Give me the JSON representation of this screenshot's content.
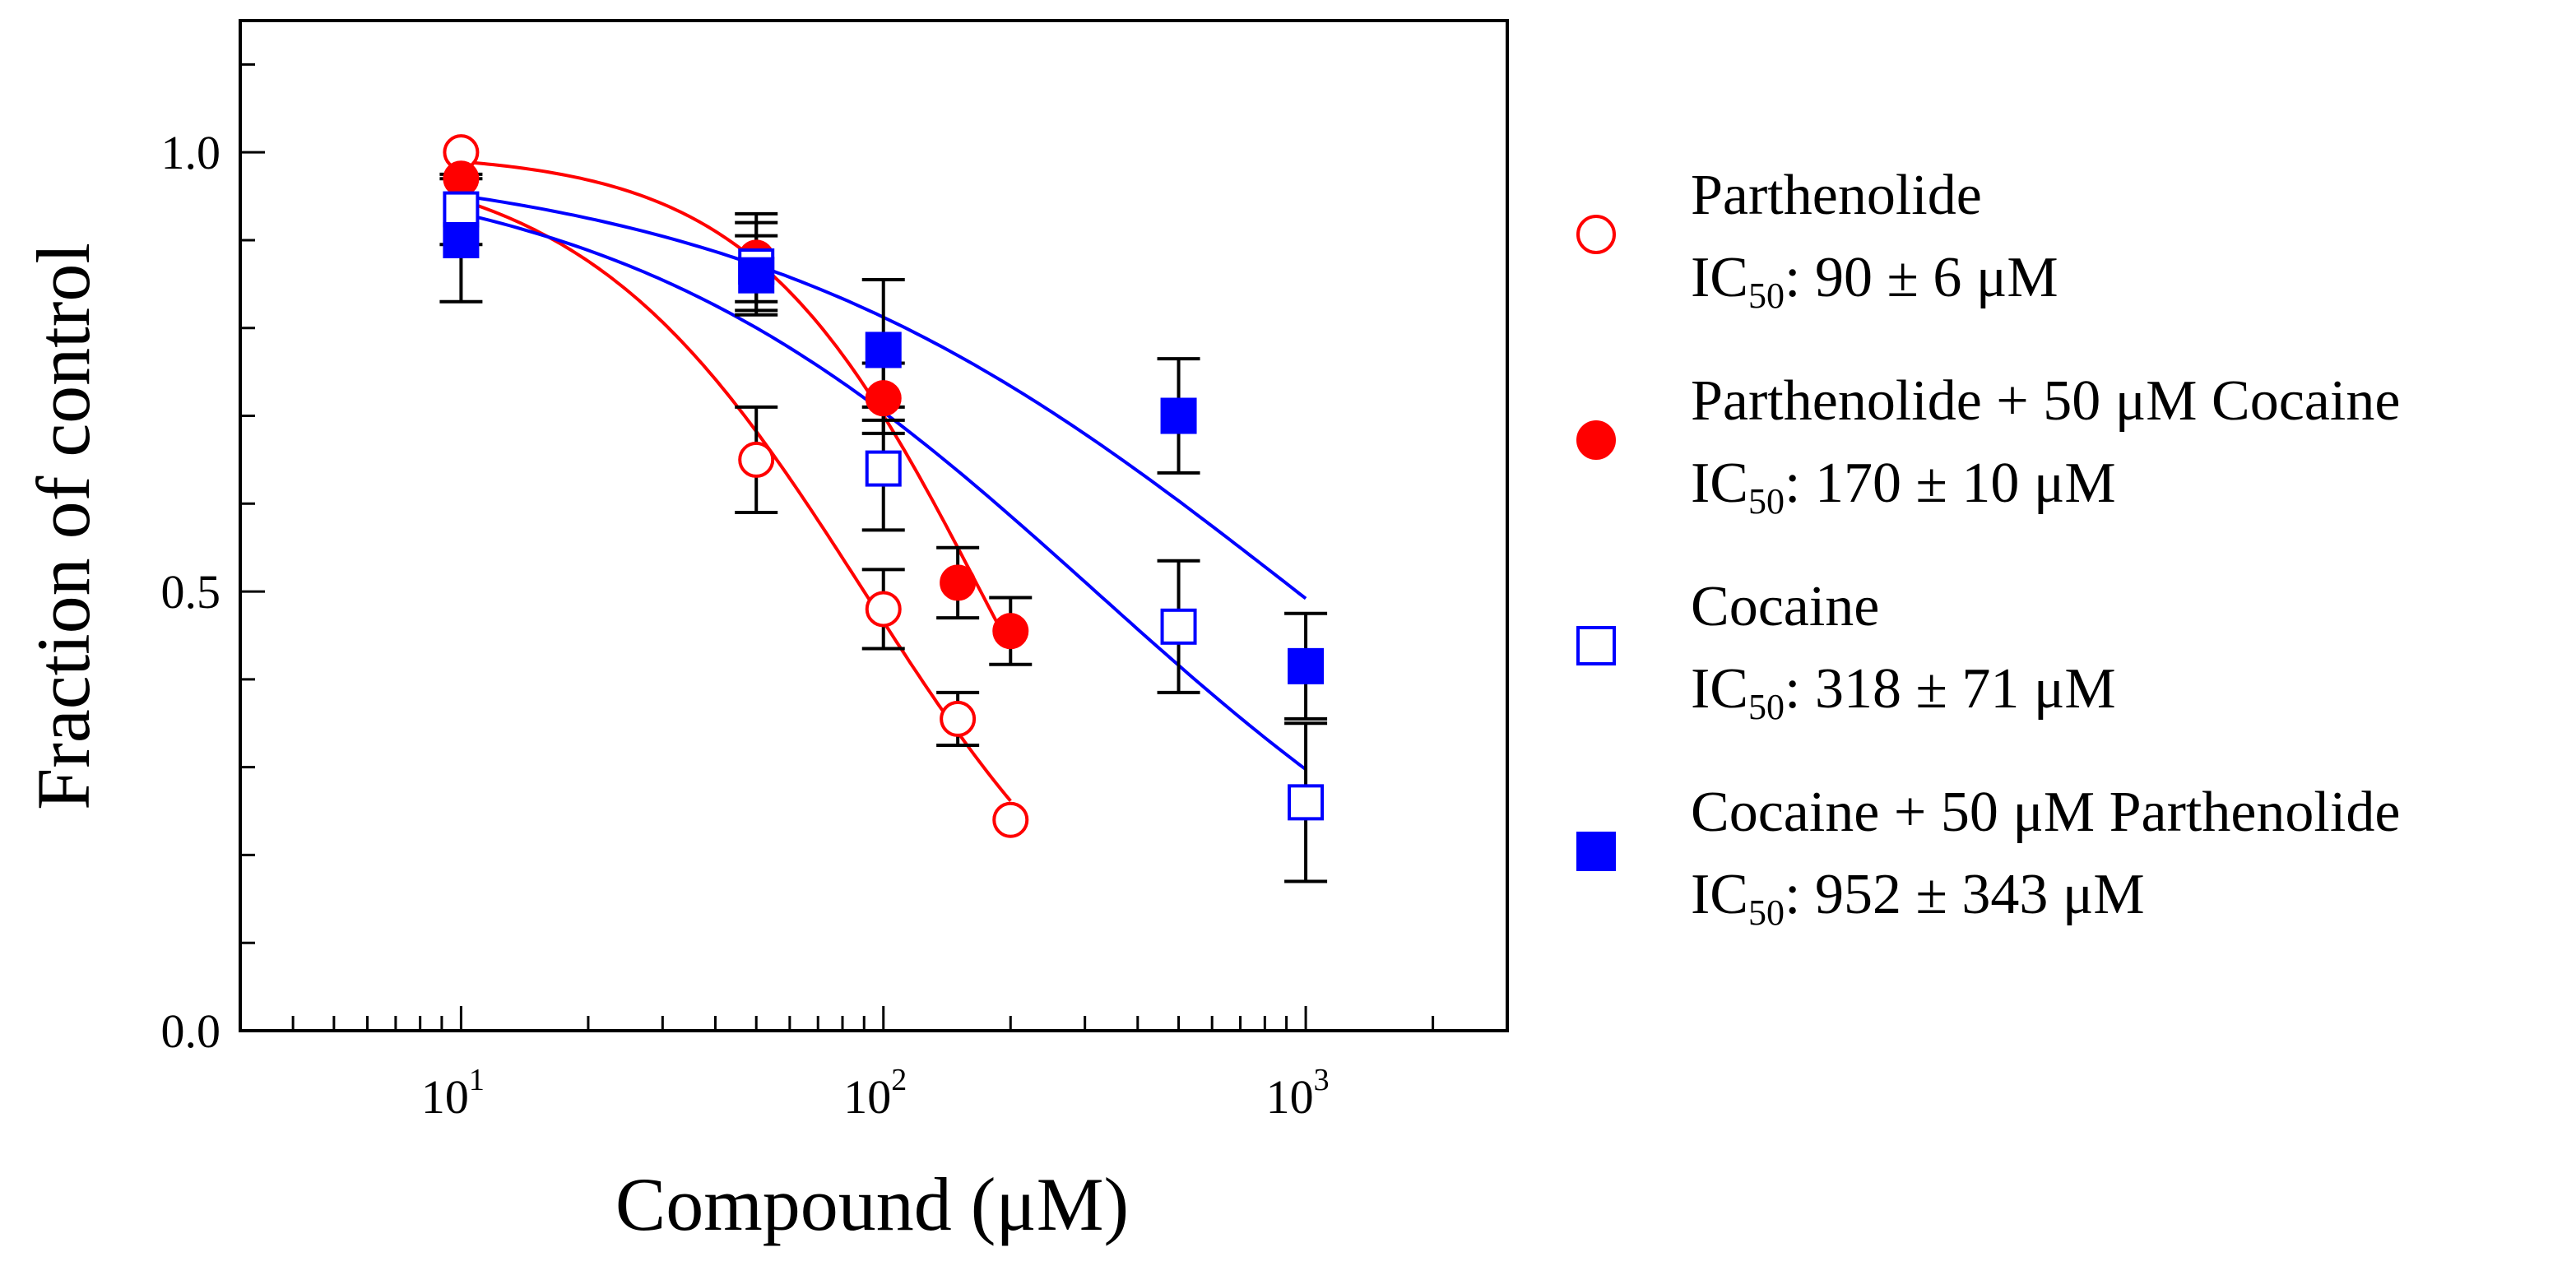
{
  "chart_data": {
    "type": "scatter",
    "title": "",
    "xlabel": "Compound (μM)",
    "ylabel": "Fraction of control",
    "x_scale": "log",
    "xlim": [
      3,
      3000
    ],
    "ylim": [
      0,
      1.15
    ],
    "x_ticks": [
      {
        "value": 10,
        "base": "10",
        "exp": "1"
      },
      {
        "value": 100,
        "base": "10",
        "exp": "2"
      },
      {
        "value": 1000,
        "base": "10",
        "exp": "3"
      }
    ],
    "y_ticks": [
      {
        "value": 0.0,
        "label": "0.0"
      },
      {
        "value": 0.5,
        "label": "0.5"
      },
      {
        "value": 1.0,
        "label": "1.0"
      }
    ],
    "legend_position": "right",
    "series": [
      {
        "name": "Parthenolide",
        "ic50_prefix": "IC",
        "ic50_sub": "50",
        "ic50_value": ": 90 ± 6 μM",
        "marker": "circle",
        "filled": false,
        "color": "#ff0000",
        "points": [
          {
            "x": 10,
            "y": 1.0,
            "err": 0.0
          },
          {
            "x": 50,
            "y": 0.65,
            "err": 0.06
          },
          {
            "x": 100,
            "y": 0.48,
            "err": 0.045
          },
          {
            "x": 150,
            "y": 0.355,
            "err": 0.03
          },
          {
            "x": 200,
            "y": 0.24,
            "err": 0.0
          }
        ],
        "fit": {
          "top": 1.0,
          "ic50": 90,
          "hill": 1.3,
          "xmin": 10,
          "xmax": 200
        }
      },
      {
        "name": "Parthenolide + 50 μM Cocaine",
        "ic50_prefix": "IC",
        "ic50_sub": "50",
        "ic50_value": ": 170 ± 10 μM",
        "marker": "circle",
        "filled": true,
        "color": "#ff0000",
        "points": [
          {
            "x": 10,
            "y": 0.97,
            "err": 0.0
          },
          {
            "x": 50,
            "y": 0.88,
            "err": 0.05
          },
          {
            "x": 100,
            "y": 0.72,
            "err": 0.04
          },
          {
            "x": 150,
            "y": 0.51,
            "err": 0.04
          },
          {
            "x": 200,
            "y": 0.455,
            "err": 0.038
          }
        ],
        "fit": {
          "top": 1.0,
          "ic50": 170,
          "hill": 1.6,
          "xmin": 10,
          "xmax": 200
        }
      },
      {
        "name": "Cocaine",
        "ic50_prefix": "IC",
        "ic50_sub": "50",
        "ic50_value": ": 318 ± 71 μM",
        "marker": "square",
        "filled": false,
        "color": "#0000ff",
        "points": [
          {
            "x": 10,
            "y": 0.935,
            "err": 0.04
          },
          {
            "x": 50,
            "y": 0.87,
            "err": 0.05
          },
          {
            "x": 100,
            "y": 0.64,
            "err": 0.07
          },
          {
            "x": 500,
            "y": 0.46,
            "err": 0.075
          },
          {
            "x": 1000,
            "y": 0.26,
            "err": 0.09
          }
        ],
        "fit": {
          "top": 1.0,
          "ic50": 318,
          "hill": 0.75,
          "xmin": 10,
          "xmax": 1000
        }
      },
      {
        "name": "Cocaine + 50 μM Parthenolide",
        "ic50_prefix": "IC",
        "ic50_sub": "50",
        "ic50_value": ": 952 ± 343 μM",
        "marker": "square",
        "filled": true,
        "color": "#0000ff",
        "points": [
          {
            "x": 10,
            "y": 0.9,
            "err": 0.07
          },
          {
            "x": 50,
            "y": 0.86,
            "err": 0.045
          },
          {
            "x": 100,
            "y": 0.775,
            "err": 0.08
          },
          {
            "x": 500,
            "y": 0.7,
            "err": 0.065
          },
          {
            "x": 1000,
            "y": 0.415,
            "err": 0.06
          }
        ],
        "fit": {
          "top": 1.0,
          "ic50": 952,
          "hill": 0.65,
          "xmin": 10,
          "xmax": 1000
        }
      }
    ]
  }
}
